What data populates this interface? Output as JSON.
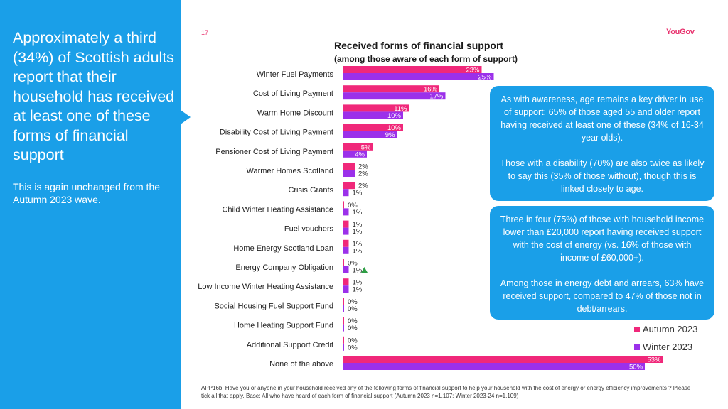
{
  "left_panel": {
    "headline": "Approximately a third (34%) of Scottish adults report that their household has received at least one of these forms of financial support",
    "subtext": "This is again unchanged from the Autumn 2023 wave."
  },
  "page_number": "17",
  "logo_text": "YouGov",
  "colors": {
    "autumn": "#f0287a",
    "winter": "#9b30ea",
    "panel": "#1a9fe8",
    "up_arrow": "#2e9e45"
  },
  "chart_data": {
    "type": "bar",
    "orientation": "horizontal",
    "title": "Received forms of financial support",
    "subtitle": "(among those aware of each form of support)",
    "categories": [
      "Winter Fuel Payments",
      "Cost of Living Payment",
      "Warm Home Discount",
      "Disability Cost of Living Payment",
      "Pensioner Cost of Living Payment",
      "Warmer Homes Scotland",
      "Crisis Grants",
      "Child Winter Heating Assistance",
      "Fuel vouchers",
      "Home Energy Scotland Loan",
      "Energy Company Obligation",
      "Low Income Winter Heating Assistance",
      "Social Housing Fuel Support Fund",
      "Home Heating Support Fund",
      "Additional Support Credit",
      "None of the above"
    ],
    "series": [
      {
        "name": "Autumn 2023",
        "values": [
          23,
          16,
          11,
          10,
          5,
          2,
          2,
          0,
          1,
          1,
          0,
          1,
          0,
          0,
          0,
          53
        ]
      },
      {
        "name": "Winter 2023",
        "values": [
          25,
          17,
          10,
          9,
          4,
          2,
          1,
          1,
          1,
          1,
          1,
          1,
          0,
          0,
          0,
          50
        ]
      }
    ],
    "significant_increase": [
      "Energy Company Obligation"
    ],
    "legend_position": "bottom-right"
  },
  "info_boxes": [
    {
      "paragraphs": [
        "As with awareness, age remains a key driver in use of support; 65% of those aged 55 and older report having received at least one of these (34% of 16-34 year olds).",
        "Those with a disability (70%) are also twice as likely to say this (35% of those without), though this is linked closely to age."
      ]
    },
    {
      "paragraphs": [
        "Three in four (75%) of those with household income lower than £20,000 report having received support with the cost of energy (vs. 16% of those with income of £60,000+).",
        "Among those in energy debt and arrears, 63% have received support, compared to 47% of those not in debt/arrears."
      ]
    }
  ],
  "footnote": "APP16b. Have you or anyone in your household received any of the following forms of financial support to help your household with the cost of energy or energy efficiency improvements ? Please tick all that apply. Base: All who have heard of each form of financial support (Autumn 2023 n=1,107; Winter 2023-24 n=1,109)"
}
